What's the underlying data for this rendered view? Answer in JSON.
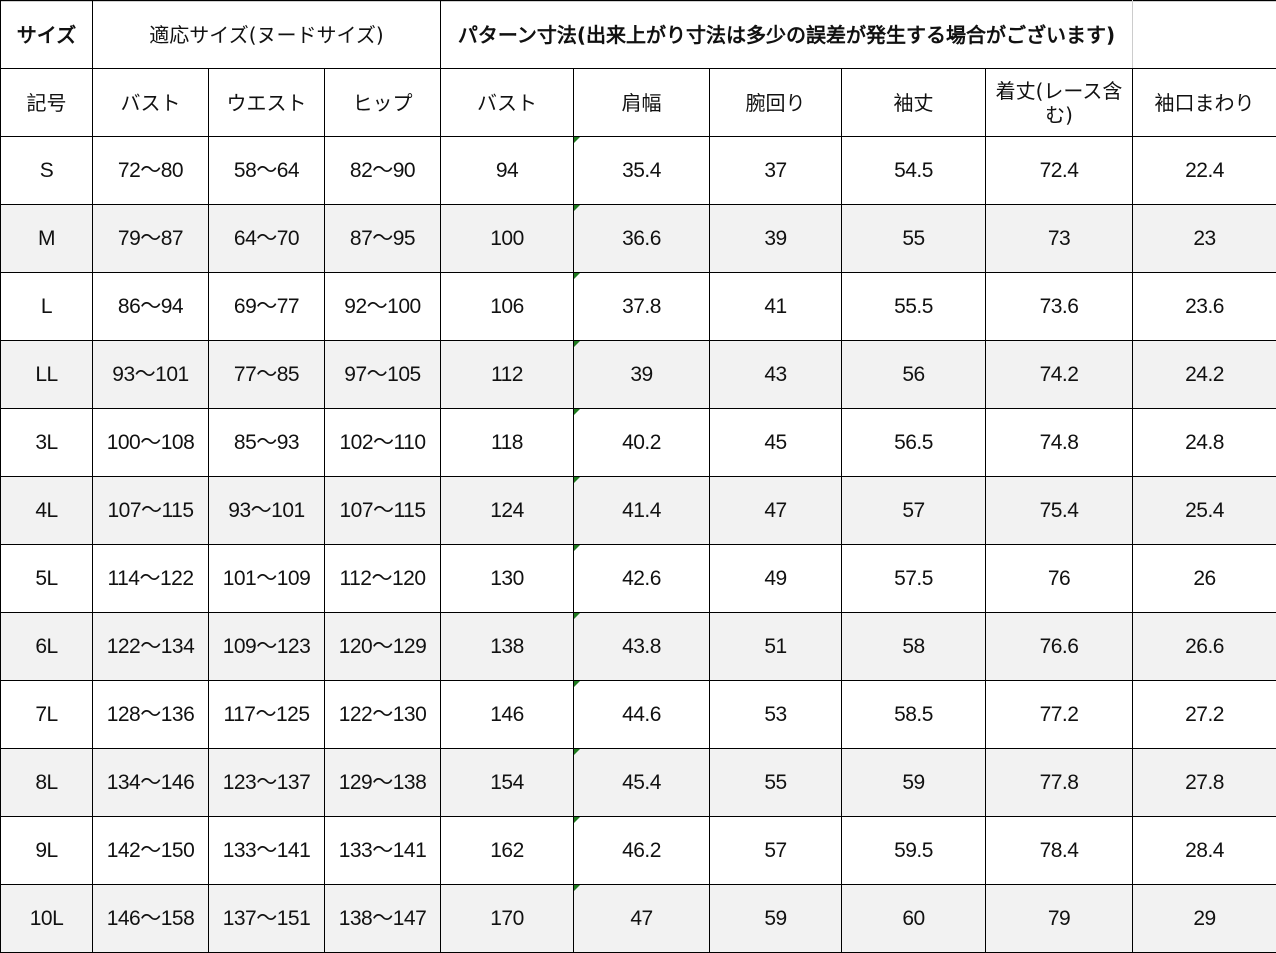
{
  "header_row1": {
    "size": "サイズ",
    "fit_size": "適応サイズ(ヌードサイズ)",
    "pattern": "パターン寸法(出来上がり寸法は多少の誤差が発生する場合がございます)",
    "blank": ""
  },
  "header_row2": [
    "記号",
    "バスト",
    "ウエスト",
    "ヒップ",
    "バスト",
    "肩幅",
    "腕回り",
    "袖丈",
    "着丈(レース含む)",
    "袖口まわり"
  ],
  "rows": [
    [
      "S",
      "72～80",
      "58～64",
      "82～90",
      "94",
      "35.4",
      "37",
      "54.5",
      "72.4",
      "22.4"
    ],
    [
      "M",
      "79～87",
      "64～70",
      "87～95",
      "100",
      "36.6",
      "39",
      "55",
      "73",
      "23"
    ],
    [
      "L",
      "86～94",
      "69～77",
      "92～100",
      "106",
      "37.8",
      "41",
      "55.5",
      "73.6",
      "23.6"
    ],
    [
      "LL",
      "93～101",
      "77～85",
      "97～105",
      "112",
      "39",
      "43",
      "56",
      "74.2",
      "24.2"
    ],
    [
      "3L",
      "100～108",
      "85～93",
      "102～110",
      "118",
      "40.2",
      "45",
      "56.5",
      "74.8",
      "24.8"
    ],
    [
      "4L",
      "107～115",
      "93～101",
      "107～115",
      "124",
      "41.4",
      "47",
      "57",
      "75.4",
      "25.4"
    ],
    [
      "5L",
      "114～122",
      "101～109",
      "112～120",
      "130",
      "42.6",
      "49",
      "57.5",
      "76",
      "26"
    ],
    [
      "6L",
      "122～134",
      "109～123",
      "120～129",
      "138",
      "43.8",
      "51",
      "58",
      "76.6",
      "26.6"
    ],
    [
      "7L",
      "128～136",
      "117～125",
      "122～130",
      "146",
      "44.6",
      "53",
      "58.5",
      "77.2",
      "27.2"
    ],
    [
      "8L",
      "134～146",
      "123～137",
      "129～138",
      "154",
      "45.4",
      "55",
      "59",
      "77.8",
      "27.8"
    ],
    [
      "9L",
      "142～150",
      "133～141",
      "133～141",
      "162",
      "46.2",
      "57",
      "59.5",
      "78.4",
      "28.4"
    ],
    [
      "10L",
      "146～158",
      "137～151",
      "138～147",
      "170",
      "47",
      "59",
      "60",
      "79",
      "29"
    ]
  ],
  "colors": {
    "alt_row": "#f2f2f2",
    "error_indicator": "#1e7a1e"
  }
}
